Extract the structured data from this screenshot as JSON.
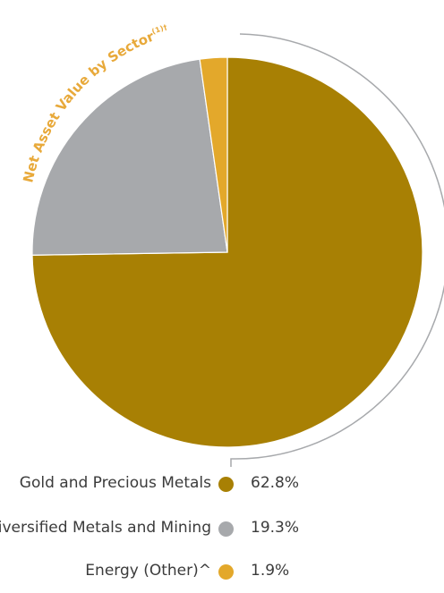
{
  "chart_data": {
    "type": "pie",
    "title": "Net Asset Value by Sector",
    "title_superscript": "(1)†",
    "slices": [
      {
        "name": "Gold and Precious Metals",
        "value": 62.8,
        "label": "62.8%",
        "color": "#a88004"
      },
      {
        "name": "Diversified Metals and Mining",
        "value": 19.3,
        "label": "19.3%",
        "color": "#a7a9ac"
      },
      {
        "name": "Energy (Other)^",
        "value": 1.9,
        "label": "1.9%",
        "color": "#e3a82b"
      }
    ]
  }
}
